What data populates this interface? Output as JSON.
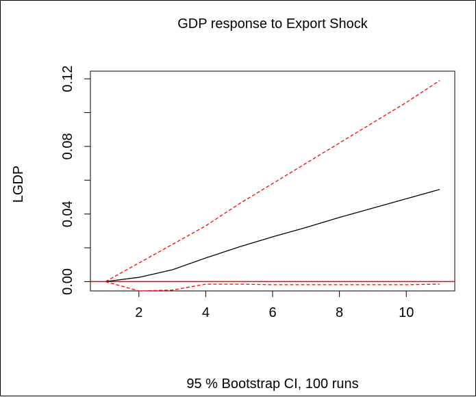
{
  "chart_data": {
    "type": "line",
    "title": "GDP response to Export Shock",
    "ylabel": "LGDP",
    "xlabel": "95 % Bootstrap CI,  100 runs",
    "xlim": [
      0.55,
      11.45
    ],
    "ylim": [
      -0.0055,
      0.1245
    ],
    "x_ticks": [
      2,
      4,
      6,
      8,
      10
    ],
    "y_ticks": [
      0.0,
      0.04,
      0.08,
      0.12
    ],
    "x_tick_labels": [
      "2",
      "4",
      "6",
      "8",
      "10"
    ],
    "y_tick_labels": [
      "0.00",
      "0.04",
      "0.08",
      "0.12"
    ],
    "x": [
      1,
      2,
      3,
      4,
      5,
      6,
      7,
      8,
      9,
      10,
      11
    ],
    "series": [
      {
        "role": "estimate",
        "color": "#000000",
        "dash": "solid",
        "values": [
          0.0,
          0.0025,
          0.007,
          0.014,
          0.0205,
          0.0265,
          0.032,
          0.038,
          0.0435,
          0.049,
          0.0545
        ]
      },
      {
        "role": "upper",
        "color": "#ff0000",
        "dash": "dashed",
        "values": [
          0.0,
          0.011,
          0.022,
          0.033,
          0.046,
          0.058,
          0.07,
          0.082,
          0.094,
          0.106,
          0.119
        ]
      },
      {
        "role": "lower",
        "color": "#ff0000",
        "dash": "dashed",
        "values": [
          0.0,
          -0.0055,
          -0.005,
          -0.0015,
          -0.0015,
          -0.0018,
          -0.0018,
          -0.0018,
          -0.0018,
          -0.0018,
          -0.0015
        ]
      }
    ],
    "reference_line": {
      "y": 0.0,
      "color": "#ff0000"
    },
    "grid": false,
    "legend": "none"
  }
}
